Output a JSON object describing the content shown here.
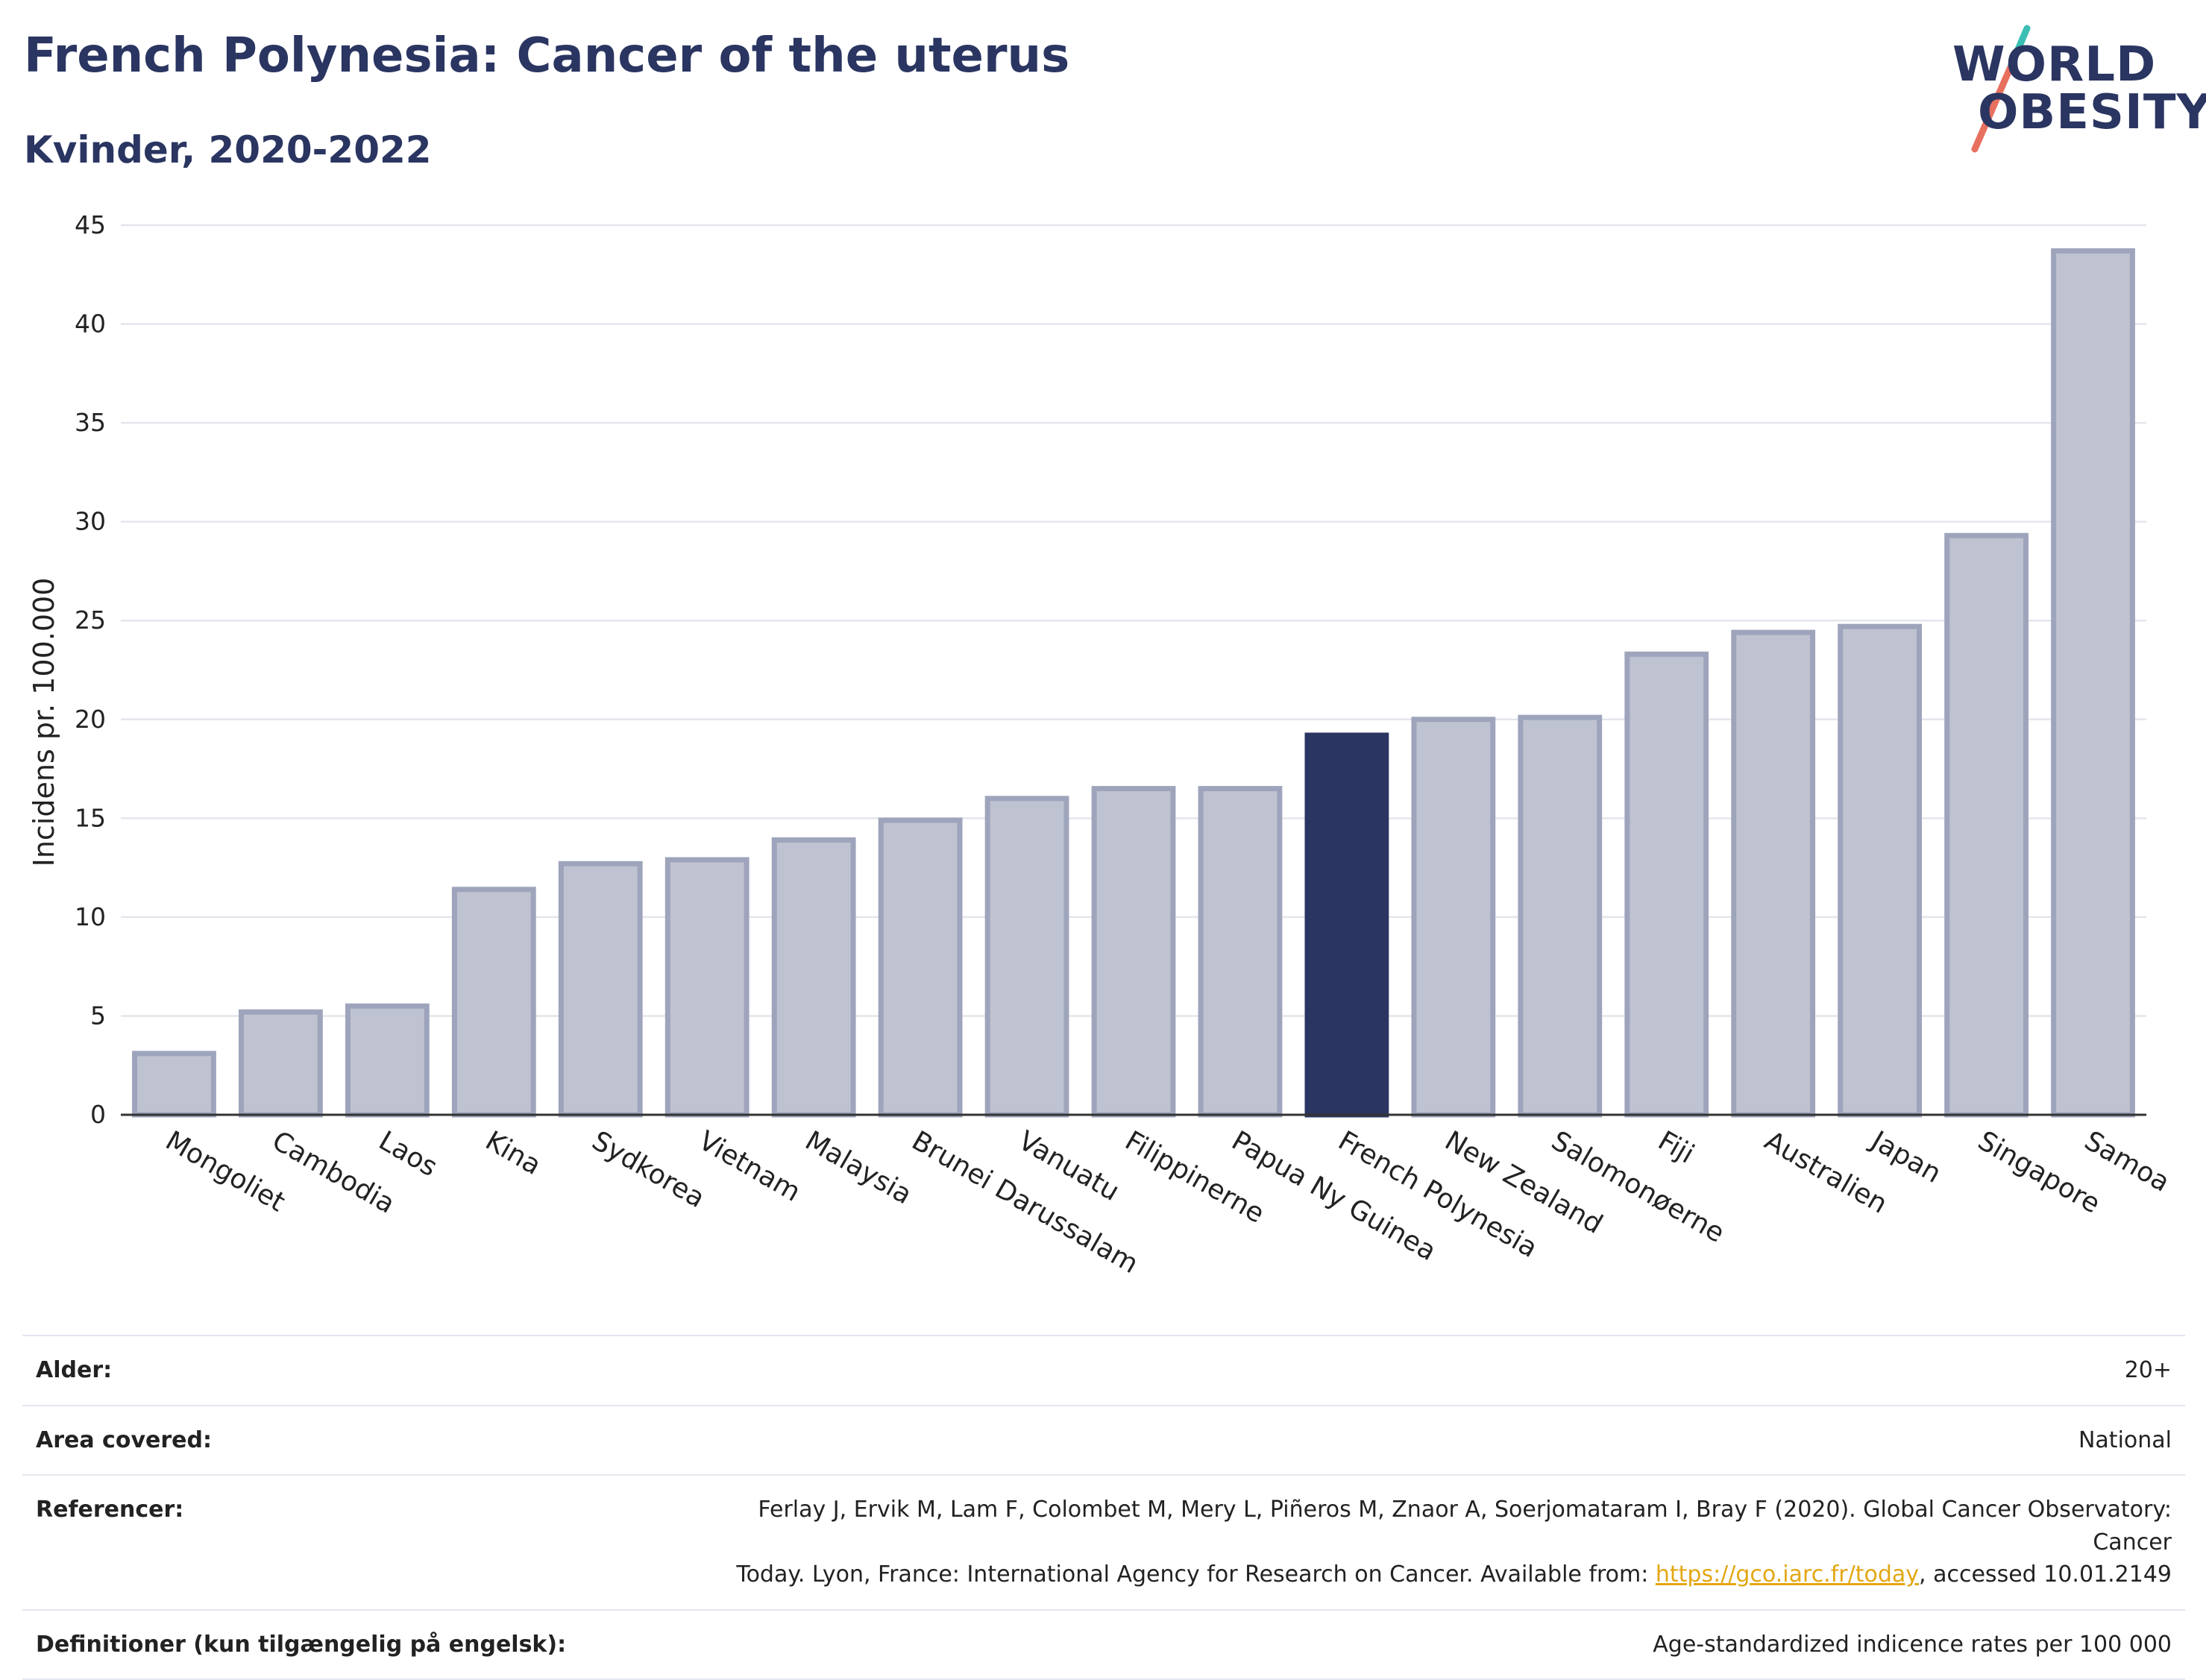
{
  "header": {
    "title": "French Polynesia: Cancer of the uterus",
    "subtitle": "Kvinder, 2020-2022"
  },
  "logo": {
    "line1": "WORLD",
    "line2": "OBESITY",
    "accent_teal": "#3bbfb4",
    "accent_coral": "#e8705f"
  },
  "colors": {
    "highlight_bar": "#2a3561",
    "other_bar_fill": "#bfc3d1",
    "other_bar_stroke": "#9ea4bb",
    "gridline": "#e4e6ec",
    "axis_text": "#222222"
  },
  "chart_data": {
    "type": "bar",
    "title": "",
    "xlabel": "",
    "ylabel": "Incidens pr. 100.000",
    "ylim": [
      0,
      45
    ],
    "yticks": [
      0,
      5,
      10,
      15,
      20,
      25,
      30,
      35,
      40,
      45
    ],
    "grid": true,
    "highlight": "French Polynesia",
    "categories": [
      "Mongoliet",
      "Cambodia",
      "Laos",
      "Kina",
      "Sydkorea",
      "Vietnam",
      "Malaysia",
      "Brunei Darussalam",
      "Vanuatu",
      "Filippinerne",
      "Papua Ny Guinea",
      "French Polynesia",
      "New Zealand",
      "Salomonøerne",
      "Fiji",
      "Australien",
      "Japan",
      "Singapore",
      "Samoa"
    ],
    "values": [
      3.1,
      5.2,
      5.5,
      11.4,
      12.7,
      12.9,
      13.9,
      14.9,
      16.0,
      16.5,
      16.5,
      19.2,
      20.0,
      20.1,
      23.3,
      24.4,
      24.7,
      29.3,
      43.7
    ]
  },
  "info": {
    "rows": [
      {
        "label": "Alder:",
        "value": "20+"
      },
      {
        "label": "Area covered:",
        "value": "National"
      },
      {
        "label": "Referencer:",
        "value_line1": "Ferlay J, Ervik M, Lam F, Colombet M, Mery L, Piñeros M, Znaor A, Soerjomataram I, Bray F (2020). Global Cancer Observatory: Cancer",
        "value_line2_pre": "Today. Lyon, France: International Agency for Research on Cancer. Available from: ",
        "link": "https://gco.iarc.fr/today",
        "value_line2_post": ", accessed 10.01.2149"
      },
      {
        "label": "Definitioner (kun tilgængelig på engelsk):",
        "value": "Age-standardized indicence rates per 100 000"
      }
    ]
  }
}
